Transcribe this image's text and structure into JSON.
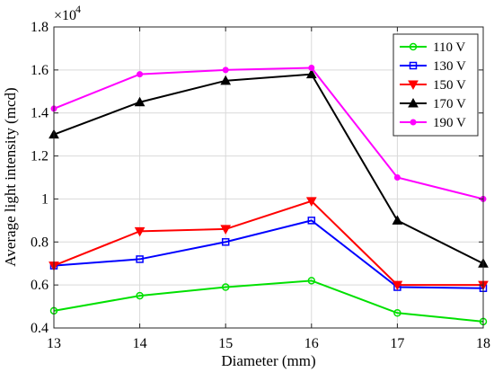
{
  "chart_data": {
    "type": "line",
    "xlabel": "Diameter (mm)",
    "ylabel": "Average light intensity (mcd)",
    "y_exponent_base": "×10",
    "y_exponent_power": "4",
    "x": [
      13,
      14,
      15,
      16,
      17,
      18
    ],
    "xlim": [
      13,
      18
    ],
    "ylim": [
      0.4,
      1.8
    ],
    "y_multiplier": 10000,
    "xticks": [
      "13",
      "14",
      "15",
      "16",
      "17",
      "18"
    ],
    "yticks": [
      "0.4",
      "0.6",
      "0.8",
      "1",
      "1.2",
      "1.4",
      "1.6",
      "1.8"
    ],
    "grid": true,
    "legend_position": "top-right",
    "series": [
      {
        "name": "110 V",
        "color": "#00e000",
        "marker": "circle",
        "values": [
          0.48,
          0.55,
          0.59,
          0.62,
          0.47,
          0.43
        ]
      },
      {
        "name": "130 V",
        "color": "#0000ff",
        "marker": "square",
        "values": [
          0.69,
          0.72,
          0.8,
          0.9,
          0.59,
          0.585
        ]
      },
      {
        "name": "150 V",
        "color": "#ff0000",
        "marker": "triangle-down",
        "values": [
          0.69,
          0.85,
          0.86,
          0.99,
          0.6,
          0.6
        ]
      },
      {
        "name": "170 V",
        "color": "#000000",
        "marker": "triangle-up",
        "values": [
          1.3,
          1.45,
          1.55,
          1.58,
          0.9,
          0.7
        ]
      },
      {
        "name": "190 V",
        "color": "#ff00ff",
        "marker": "point",
        "values": [
          1.42,
          1.58,
          1.6,
          1.61,
          1.1,
          1.0
        ]
      }
    ]
  }
}
